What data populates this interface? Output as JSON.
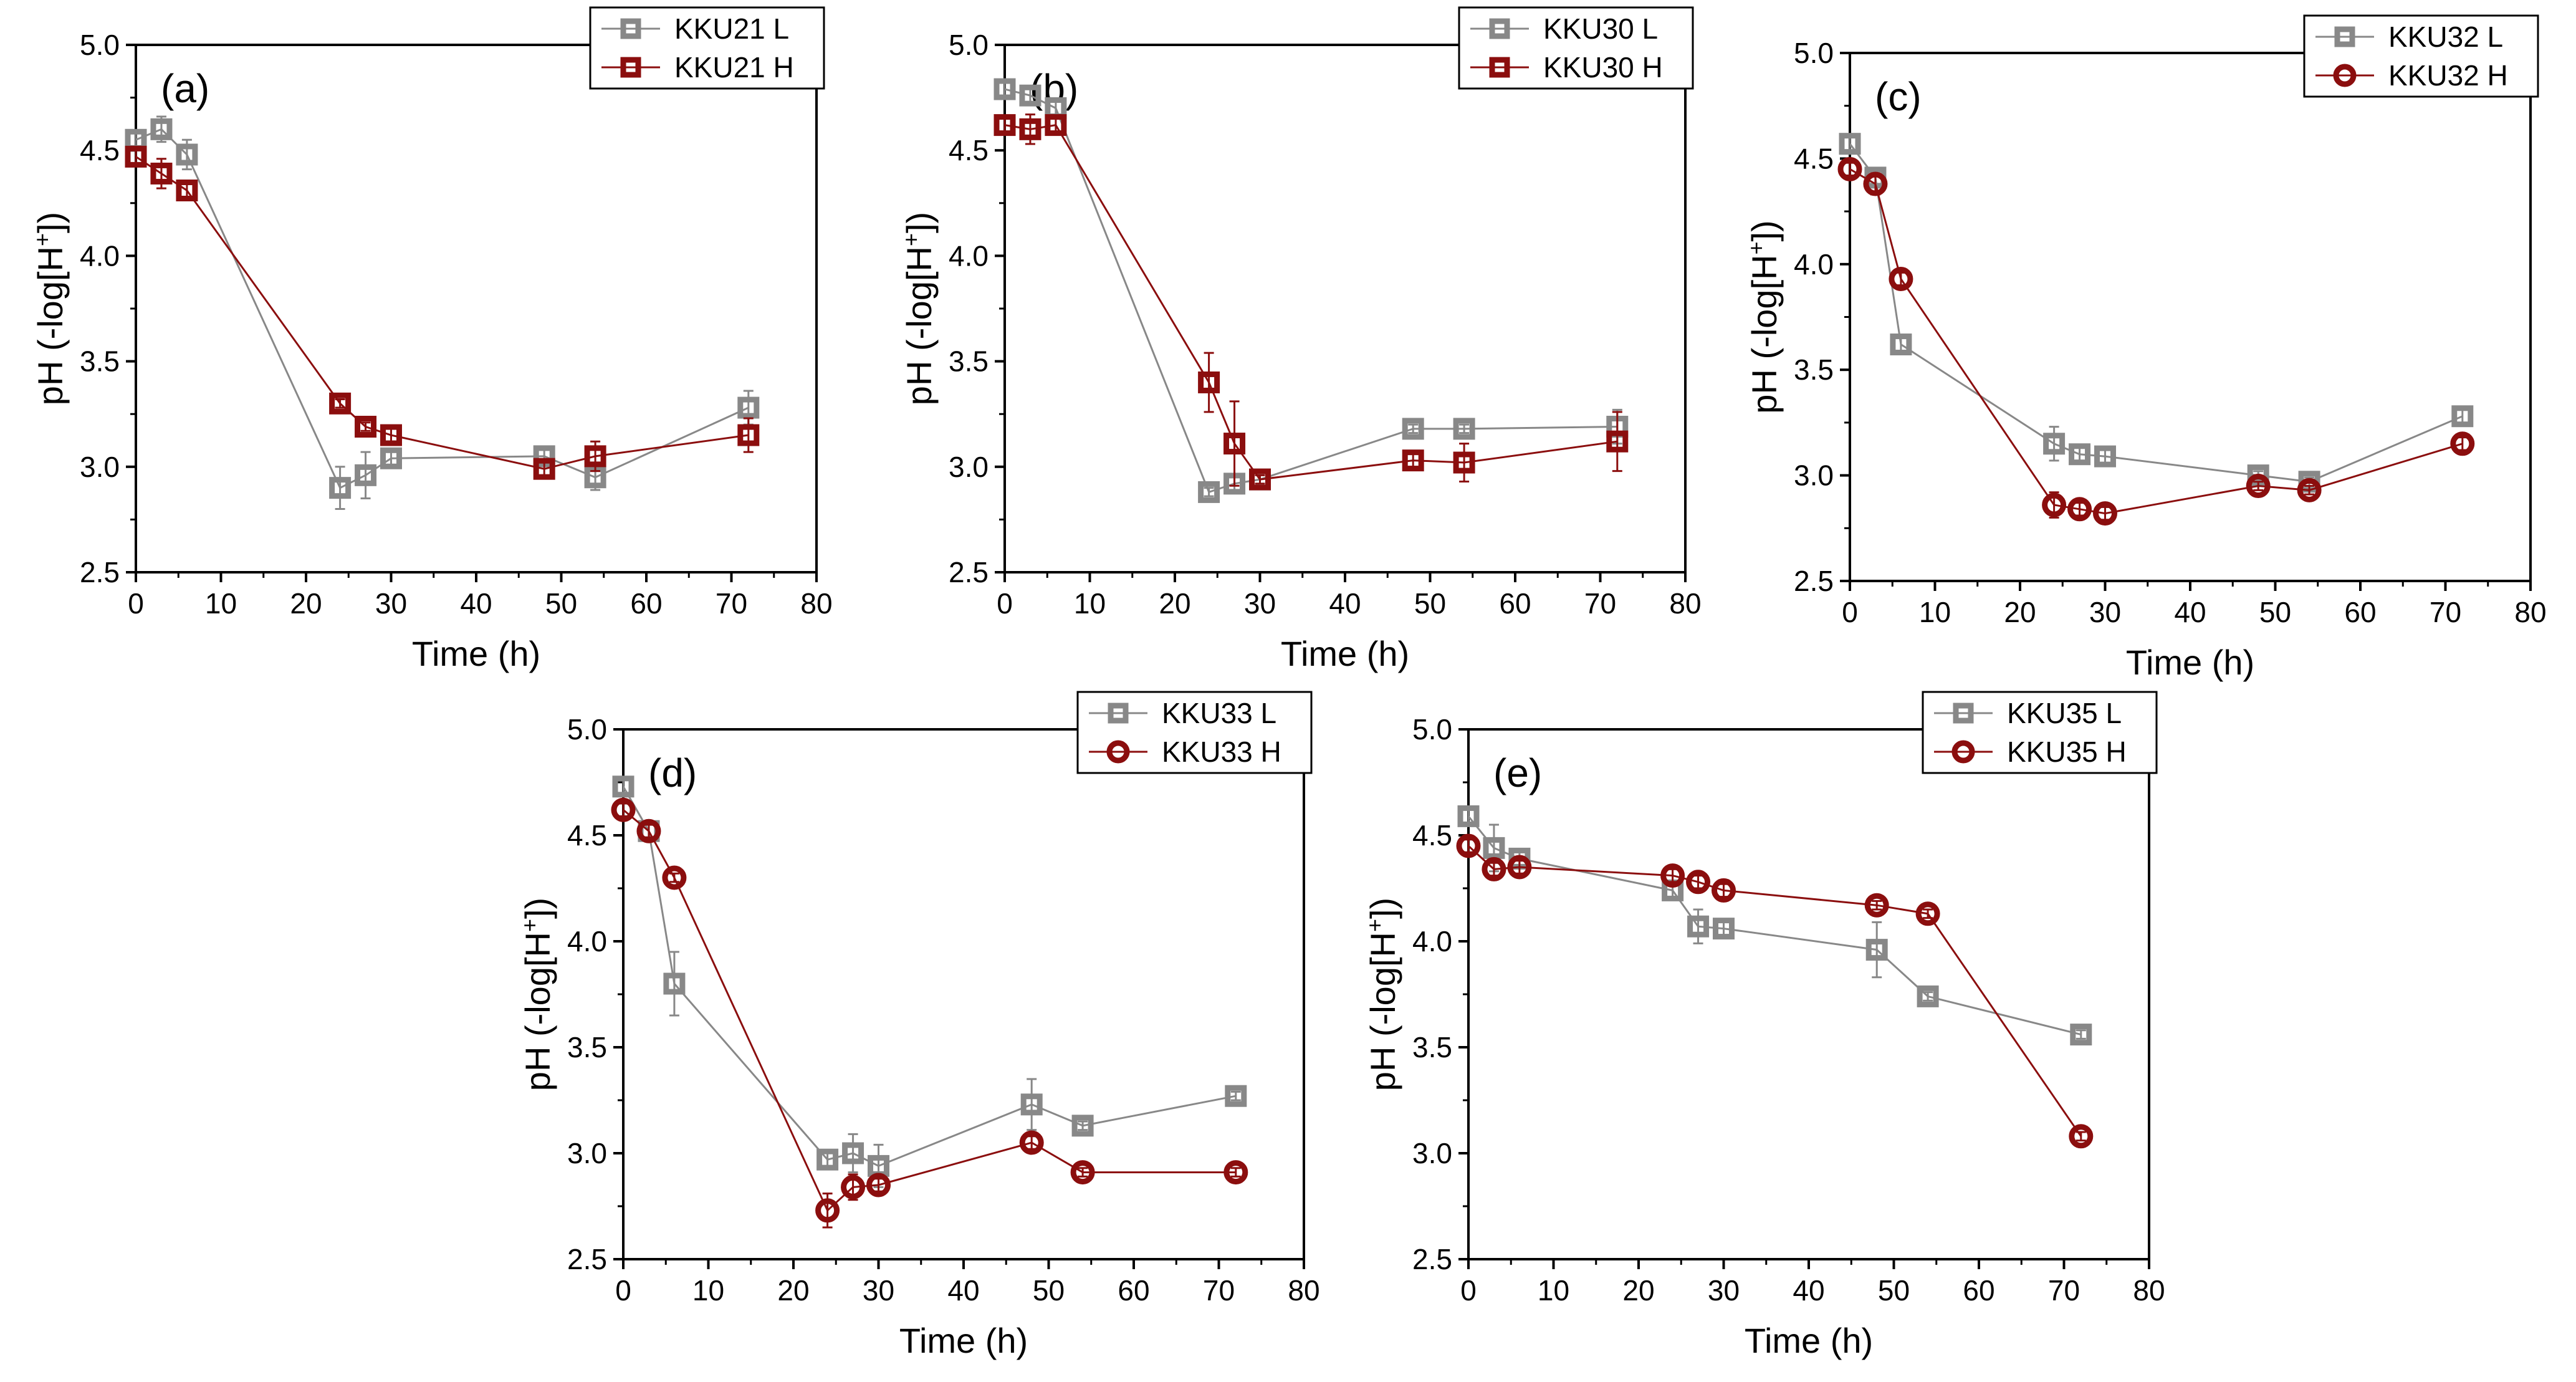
{
  "colors": {
    "L": "#888888",
    "H": "#8b0e0e"
  },
  "chart_data": [
    {
      "type": "line",
      "panel_label": "(a)",
      "xlabel": "Time (h)",
      "ylabel": "pH (-log[H+])",
      "xlim": [
        0,
        80
      ],
      "ylim": [
        2.5,
        5.0
      ],
      "xticks": [
        0,
        10,
        20,
        30,
        40,
        50,
        60,
        70,
        80
      ],
      "yticks": [
        2.5,
        3.0,
        3.5,
        4.0,
        4.5,
        5.0
      ],
      "legend_position": "top-right",
      "series": [
        {
          "name": "KKU21 L",
          "key": "L",
          "marker": "square",
          "x": [
            0,
            3,
            6,
            24,
            27,
            30,
            48,
            54,
            72
          ],
          "y": [
            4.55,
            4.6,
            4.48,
            2.9,
            2.96,
            3.04,
            3.05,
            2.95,
            3.28
          ],
          "err": [
            0.04,
            0.06,
            0.07,
            0.1,
            0.11,
            0.03,
            0.03,
            0.06,
            0.08
          ]
        },
        {
          "name": "KKU21 H",
          "key": "H",
          "marker": "square",
          "x": [
            0,
            3,
            6,
            24,
            27,
            30,
            48,
            54,
            72
          ],
          "y": [
            4.47,
            4.39,
            4.31,
            3.3,
            3.19,
            3.15,
            2.99,
            3.05,
            3.15
          ],
          "err": [
            0.03,
            0.07,
            0.03,
            0.02,
            0.02,
            0.03,
            0.03,
            0.07,
            0.08
          ]
        }
      ]
    },
    {
      "type": "line",
      "panel_label": "(b)",
      "xlabel": "Time (h)",
      "ylabel": "pH (-log[H+])",
      "xlim": [
        0,
        80
      ],
      "ylim": [
        2.5,
        5.0
      ],
      "xticks": [
        0,
        10,
        20,
        30,
        40,
        50,
        60,
        70,
        80
      ],
      "yticks": [
        2.5,
        3.0,
        3.5,
        4.0,
        4.5,
        5.0
      ],
      "legend_position": "top-right",
      "series": [
        {
          "name": "KKU30 L",
          "key": "L",
          "marker": "square",
          "x": [
            0,
            3,
            6,
            24,
            27,
            30,
            48,
            54,
            72
          ],
          "y": [
            4.79,
            4.76,
            4.7,
            2.88,
            2.92,
            2.94,
            3.18,
            3.18,
            3.19
          ],
          "err": [
            0.03,
            0.03,
            0.03,
            0.02,
            0.03,
            0.02,
            0.02,
            0.02,
            0.08
          ]
        },
        {
          "name": "KKU30 H",
          "key": "H",
          "marker": "square",
          "x": [
            0,
            3,
            6,
            24,
            27,
            30,
            48,
            54,
            72
          ],
          "y": [
            4.62,
            4.6,
            4.62,
            3.4,
            3.11,
            2.94,
            3.03,
            3.02,
            3.12
          ],
          "err": [
            0.04,
            0.07,
            0.04,
            0.14,
            0.2,
            0.02,
            0.03,
            0.09,
            0.14
          ]
        }
      ]
    },
    {
      "type": "line",
      "panel_label": "(c)",
      "xlabel": "Time (h)",
      "ylabel": "pH (-log[H+])",
      "xlim": [
        0,
        80
      ],
      "ylim": [
        2.5,
        5.0
      ],
      "xticks": [
        0,
        10,
        20,
        30,
        40,
        50,
        60,
        70,
        80
      ],
      "yticks": [
        2.5,
        3.0,
        3.5,
        4.0,
        4.5,
        5.0
      ],
      "legend_position": "top-right",
      "series": [
        {
          "name": "KKU32 L",
          "key": "L",
          "marker": "square",
          "x": [
            0,
            3,
            6,
            24,
            27,
            30,
            48,
            54,
            72
          ],
          "y": [
            4.57,
            4.41,
            3.62,
            3.15,
            3.1,
            3.09,
            3.0,
            2.97,
            3.28
          ],
          "err": [
            0.03,
            0.04,
            0.03,
            0.08,
            0.03,
            0.03,
            0.02,
            0.02,
            0.03
          ]
        },
        {
          "name": "KKU32 H",
          "key": "H",
          "marker": "circle",
          "x": [
            0,
            3,
            6,
            24,
            27,
            30,
            48,
            54,
            72
          ],
          "y": [
            4.45,
            4.38,
            3.93,
            2.86,
            2.84,
            2.82,
            2.95,
            2.93,
            3.15
          ],
          "err": [
            0.03,
            0.05,
            0.03,
            0.06,
            0.03,
            0.03,
            0.02,
            0.02,
            0.03
          ]
        }
      ]
    },
    {
      "type": "line",
      "panel_label": "(d)",
      "xlabel": "Time (h)",
      "ylabel": "pH (-log[H+])",
      "xlim": [
        0,
        80
      ],
      "ylim": [
        2.5,
        5.0
      ],
      "xticks": [
        0,
        10,
        20,
        30,
        40,
        50,
        60,
        70,
        80
      ],
      "yticks": [
        2.5,
        3.0,
        3.5,
        4.0,
        4.5,
        5.0
      ],
      "legend_position": "top-right",
      "series": [
        {
          "name": "KKU33 L",
          "key": "L",
          "marker": "square",
          "x": [
            0,
            3,
            6,
            24,
            27,
            30,
            48,
            54,
            72
          ],
          "y": [
            4.73,
            4.52,
            3.8,
            2.97,
            3.0,
            2.94,
            3.23,
            3.13,
            3.27
          ],
          "err": [
            0.03,
            0.03,
            0.15,
            0.03,
            0.09,
            0.1,
            0.12,
            0.02,
            0.02
          ]
        },
        {
          "name": "KKU33 H",
          "key": "H",
          "marker": "circle",
          "x": [
            0,
            3,
            6,
            24,
            27,
            30,
            48,
            54,
            72
          ],
          "y": [
            4.62,
            4.52,
            4.3,
            2.73,
            2.84,
            2.85,
            3.05,
            2.91,
            2.91
          ],
          "err": [
            0.03,
            0.03,
            0.02,
            0.08,
            0.06,
            0.03,
            0.03,
            0.02,
            0.02
          ]
        }
      ]
    },
    {
      "type": "line",
      "panel_label": "(e)",
      "xlabel": "Time (h)",
      "ylabel": "pH (-log[H+])",
      "xlim": [
        0,
        80
      ],
      "ylim": [
        2.5,
        5.0
      ],
      "xticks": [
        0,
        10,
        20,
        30,
        40,
        50,
        60,
        70,
        80
      ],
      "yticks": [
        2.5,
        3.0,
        3.5,
        4.0,
        4.5,
        5.0
      ],
      "legend_position": "top-right",
      "series": [
        {
          "name": "KKU35 L",
          "key": "L",
          "marker": "square",
          "x": [
            0,
            3,
            6,
            24,
            27,
            30,
            48,
            54,
            72
          ],
          "y": [
            4.59,
            4.44,
            4.39,
            4.24,
            4.07,
            4.06,
            3.96,
            3.74,
            3.56
          ],
          "err": [
            0.04,
            0.11,
            0.03,
            0.03,
            0.08,
            0.03,
            0.13,
            0.02,
            0.02
          ]
        },
        {
          "name": "KKU35 H",
          "key": "H",
          "marker": "circle",
          "x": [
            0,
            3,
            6,
            24,
            27,
            30,
            48,
            54,
            72
          ],
          "y": [
            4.45,
            4.34,
            4.35,
            4.31,
            4.28,
            4.24,
            4.17,
            4.13,
            3.08
          ],
          "err": [
            0.03,
            0.03,
            0.03,
            0.03,
            0.03,
            0.03,
            0.02,
            0.02,
            0.02
          ]
        }
      ]
    }
  ]
}
